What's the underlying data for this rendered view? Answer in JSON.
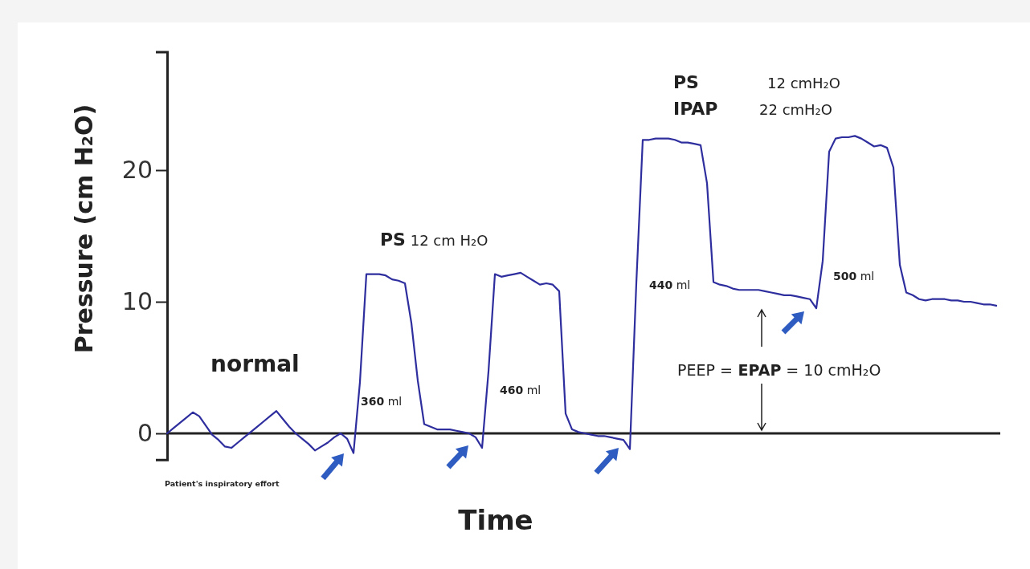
{
  "chart_data": {
    "type": "line",
    "xlabel": "Time",
    "ylabel": "Pressure  (cm H₂O)",
    "categories": [
      null,
      null,
      null,
      null,
      null,
      null,
      null,
      null,
      null,
      null,
      null,
      null,
      null,
      null,
      null,
      null,
      null,
      null,
      null,
      null,
      null,
      null,
      null,
      null,
      null,
      null,
      null,
      null,
      null,
      null,
      null,
      null,
      null,
      null,
      null,
      null,
      null,
      null,
      null,
      null,
      null,
      null,
      null,
      null,
      null,
      null,
      null,
      null,
      null,
      null,
      null,
      null,
      null,
      null,
      null,
      null,
      null,
      null,
      null,
      null,
      null,
      null,
      null,
      null,
      null,
      null,
      null,
      null,
      null,
      null,
      null,
      null,
      null,
      null,
      null,
      null,
      null,
      null,
      null,
      null,
      null,
      null,
      null,
      null,
      null,
      null,
      null,
      null,
      null,
      null,
      null,
      null,
      null,
      null,
      null,
      null,
      null,
      null,
      null,
      null,
      null,
      null,
      null,
      null,
      null,
      null,
      null,
      null,
      null,
      null,
      null,
      null,
      null,
      null,
      null,
      null,
      null,
      null,
      null,
      null,
      null,
      null,
      null,
      null,
      null,
      null,
      null,
      null,
      null,
      null
    ],
    "series": [
      {
        "color": "#2e2e9e",
        "values": [
          0,
          0.4,
          0.8,
          1.2,
          1.6,
          1.3,
          0.6,
          -0.1,
          -0.5,
          -1.0,
          -1.1,
          -0.7,
          -0.3,
          0.1,
          0.5,
          0.9,
          1.3,
          1.7,
          1.1,
          0.5,
          0,
          -0.4,
          -0.8,
          -1.3,
          -1.0,
          -0.7,
          -0.3,
          0,
          -0.4,
          -1.5,
          3.9,
          12.1,
          12.1,
          12.1,
          12.0,
          11.7,
          11.6,
          11.4,
          8.4,
          4.0,
          0.7,
          0.5,
          0.3,
          0.3,
          0.3,
          0.2,
          0.1,
          0,
          -0.3,
          -1.1,
          4.7,
          12.1,
          11.9,
          12.0,
          12.1,
          12.2,
          11.9,
          11.6,
          11.3,
          11.4,
          11.3,
          10.8,
          1.5,
          0.3,
          0.1,
          0,
          -0.1,
          -0.2,
          -0.2,
          -0.3,
          -0.4,
          -0.5,
          -1.2,
          11.4,
          22.3,
          22.3,
          22.4,
          22.4,
          22.4,
          22.3,
          22.1,
          22.1,
          22.0,
          21.9,
          19.0,
          11.5,
          11.3,
          11.2,
          11.0,
          10.9,
          10.9,
          10.9,
          10.9,
          10.8,
          10.7,
          10.6,
          10.5,
          10.5,
          10.4,
          10.3,
          10.2,
          9.5,
          13.1,
          21.4,
          22.4,
          22.5,
          22.5,
          22.6,
          22.4,
          22.1,
          21.8,
          21.9,
          21.7,
          20.2,
          12.8,
          10.7,
          10.5,
          10.2,
          10.1,
          10.2,
          10.2,
          10.2,
          10.1,
          10.1,
          10.0,
          10.0,
          9.9,
          9.8,
          9.8,
          9.7
        ]
      }
    ],
    "ylim": [
      -2,
      29
    ],
    "yticks": [
      0,
      10,
      20
    ],
    "tick_labels": "y",
    "annotations": [
      "normal",
      "PS 12 cm H₂O",
      "360 ml",
      "460 ml",
      "440 ml",
      "500 ml",
      "PS 12 cmH₂O",
      "IPAP 22 cmH₂O",
      "PEEP = EPAP = 10 cmH₂O",
      "Patient's inspiratory effort"
    ]
  }
}
